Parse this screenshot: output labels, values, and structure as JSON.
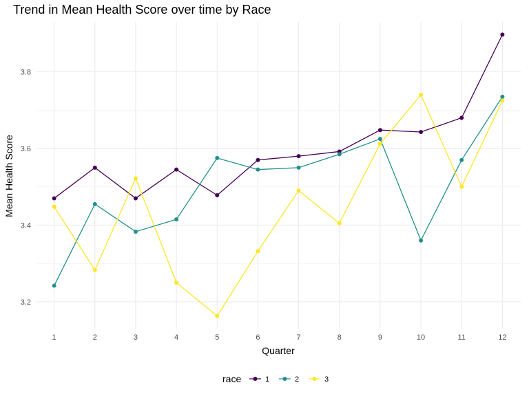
{
  "chart_data": {
    "type": "line",
    "title": "Trend in Mean Health Score over time by Race",
    "xlabel": "Quarter",
    "ylabel": "Mean Health Score",
    "x": [
      1,
      2,
      3,
      4,
      5,
      6,
      7,
      8,
      9,
      10,
      11,
      12
    ],
    "x_tick_labels": [
      "1",
      "2",
      "3",
      "4",
      "5",
      "6",
      "7",
      "8",
      "9",
      "10",
      "11",
      "12"
    ],
    "y_ticks": [
      3.2,
      3.4,
      3.6,
      3.8
    ],
    "y_tick_labels": [
      "3.2",
      "3.4",
      "3.6",
      "3.8"
    ],
    "ylim": [
      3.13,
      3.93
    ],
    "xlim": [
      0.55,
      12.45
    ],
    "grid": true,
    "legend": {
      "title": "race",
      "position": "bottom"
    },
    "series": [
      {
        "name": "1",
        "color": "#440154",
        "values": [
          3.47,
          3.55,
          3.47,
          3.545,
          3.478,
          3.57,
          3.58,
          3.592,
          3.648,
          3.643,
          3.68,
          3.897
        ]
      },
      {
        "name": "2",
        "color": "#21908C",
        "values": [
          3.242,
          3.455,
          3.383,
          3.415,
          3.575,
          3.545,
          3.55,
          3.585,
          3.625,
          3.36,
          3.57,
          3.735
        ]
      },
      {
        "name": "3",
        "color": "#FDE725",
        "values": [
          3.448,
          3.283,
          3.522,
          3.25,
          3.163,
          3.332,
          3.49,
          3.405,
          3.612,
          3.74,
          3.5,
          3.725
        ]
      }
    ]
  }
}
